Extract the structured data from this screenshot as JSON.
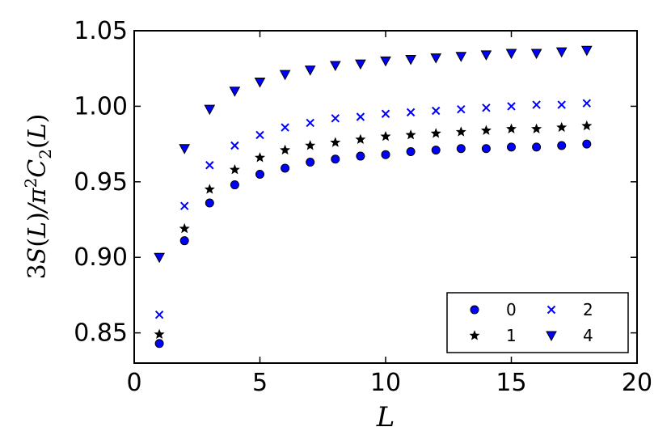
{
  "chart_data": {
    "type": "scatter",
    "title": "",
    "xlabel": "L",
    "ylabel_parts": {
      "prefix": "3",
      "S": "S",
      "L1": "L",
      "slash": "/",
      "pi": "π",
      "sq": "2",
      "C": "C",
      "sub": "2",
      "L2": "L",
      "lp": "(",
      "rp": ")"
    },
    "xlim": [
      0,
      20
    ],
    "ylim": [
      0.83,
      1.05
    ],
    "xticks": [
      0,
      5,
      10,
      15,
      20
    ],
    "xtick_labels": [
      "0",
      "5",
      "10",
      "15",
      "20"
    ],
    "yticks": [
      0.85,
      0.9,
      0.95,
      1.0,
      1.05
    ],
    "ytick_labels": [
      "0.85",
      "0.90",
      "0.95",
      "1.00",
      "1.05"
    ],
    "grid": false,
    "legend_position": "lower-right",
    "legend_columns": 2,
    "x": [
      1,
      2,
      3,
      4,
      5,
      6,
      7,
      8,
      9,
      10,
      11,
      12,
      13,
      14,
      15,
      16,
      17,
      18
    ],
    "series": [
      {
        "name": "0",
        "marker": "circle",
        "color": "#0000ff",
        "values": [
          0.843,
          0.911,
          0.936,
          0.948,
          0.955,
          0.959,
          0.963,
          0.965,
          0.967,
          0.968,
          0.97,
          0.971,
          0.972,
          0.972,
          0.973,
          0.973,
          0.974,
          0.975
        ]
      },
      {
        "name": "1",
        "marker": "star",
        "color": "#000000",
        "values": [
          0.849,
          0.919,
          0.945,
          0.958,
          0.966,
          0.971,
          0.974,
          0.976,
          0.978,
          0.98,
          0.981,
          0.982,
          0.983,
          0.984,
          0.985,
          0.985,
          0.986,
          0.987
        ]
      },
      {
        "name": "2",
        "marker": "x",
        "color": "#0000ff",
        "values": [
          0.862,
          0.934,
          0.961,
          0.974,
          0.981,
          0.986,
          0.989,
          0.992,
          0.993,
          0.995,
          0.996,
          0.997,
          0.998,
          0.999,
          1.0,
          1.001,
          1.001,
          1.002
        ]
      },
      {
        "name": "4",
        "marker": "triangle-down",
        "color": "#0000ff",
        "values": [
          0.9,
          0.972,
          0.998,
          1.01,
          1.016,
          1.021,
          1.024,
          1.027,
          1.028,
          1.03,
          1.031,
          1.032,
          1.033,
          1.034,
          1.035,
          1.035,
          1.036,
          1.037
        ]
      }
    ]
  }
}
